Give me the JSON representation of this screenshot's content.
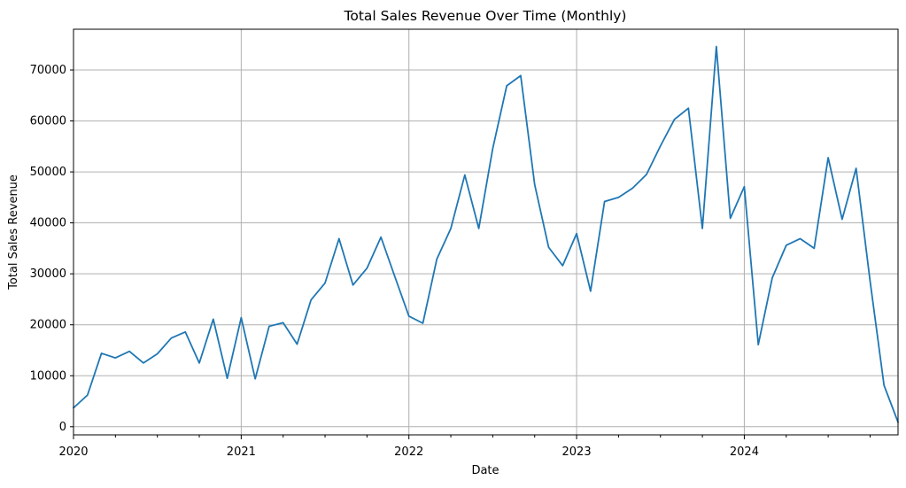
{
  "chart_data": {
    "type": "line",
    "title": "Total Sales Revenue Over Time (Monthly)",
    "xlabel": "Date",
    "ylabel": "Total Sales Revenue",
    "x_tick_labels": [
      "2020",
      "2021",
      "2022",
      "2023",
      "2024"
    ],
    "y_ticks": [
      0,
      10000,
      20000,
      30000,
      40000,
      50000,
      60000,
      70000
    ],
    "xlim": [
      "2020-01",
      "2024-12"
    ],
    "ylim": [
      -1600,
      78000
    ],
    "grid": true,
    "line_color": "#1f77b4",
    "grid_color": "#b0b0b0",
    "x": [
      "2020-01",
      "2020-02",
      "2020-03",
      "2020-04",
      "2020-05",
      "2020-06",
      "2020-07",
      "2020-08",
      "2020-09",
      "2020-10",
      "2020-11",
      "2020-12",
      "2021-01",
      "2021-02",
      "2021-03",
      "2021-04",
      "2021-05",
      "2021-06",
      "2021-07",
      "2021-08",
      "2021-09",
      "2021-10",
      "2021-11",
      "2021-12",
      "2022-01",
      "2022-02",
      "2022-03",
      "2022-04",
      "2022-05",
      "2022-06",
      "2022-07",
      "2022-08",
      "2022-09",
      "2022-10",
      "2022-11",
      "2022-12",
      "2023-01",
      "2023-02",
      "2023-03",
      "2023-04",
      "2023-05",
      "2023-06",
      "2023-07",
      "2023-08",
      "2023-09",
      "2023-10",
      "2023-11",
      "2023-12",
      "2024-01",
      "2024-02",
      "2024-03",
      "2024-04",
      "2024-05",
      "2024-06",
      "2024-07",
      "2024-08",
      "2024-09",
      "2024-10",
      "2024-11",
      "2024-12"
    ],
    "values": [
      3700,
      6200,
      14400,
      13500,
      14800,
      12500,
      14300,
      17400,
      18600,
      12500,
      21100,
      9500,
      21400,
      9400,
      19700,
      20400,
      16200,
      24900,
      28200,
      36900,
      27800,
      31100,
      37200,
      29400,
      21700,
      20300,
      32900,
      38900,
      49400,
      38900,
      54600,
      66900,
      68900,
      47500,
      35200,
      31600,
      37900,
      26600,
      44200,
      45000,
      46800,
      49500,
      55100,
      60300,
      62500,
      38900,
      74600,
      40900,
      47100,
      16100,
      29200,
      35600,
      36900,
      35000,
      52800,
      40700,
      50700,
      28600,
      8100,
      900
    ]
  }
}
